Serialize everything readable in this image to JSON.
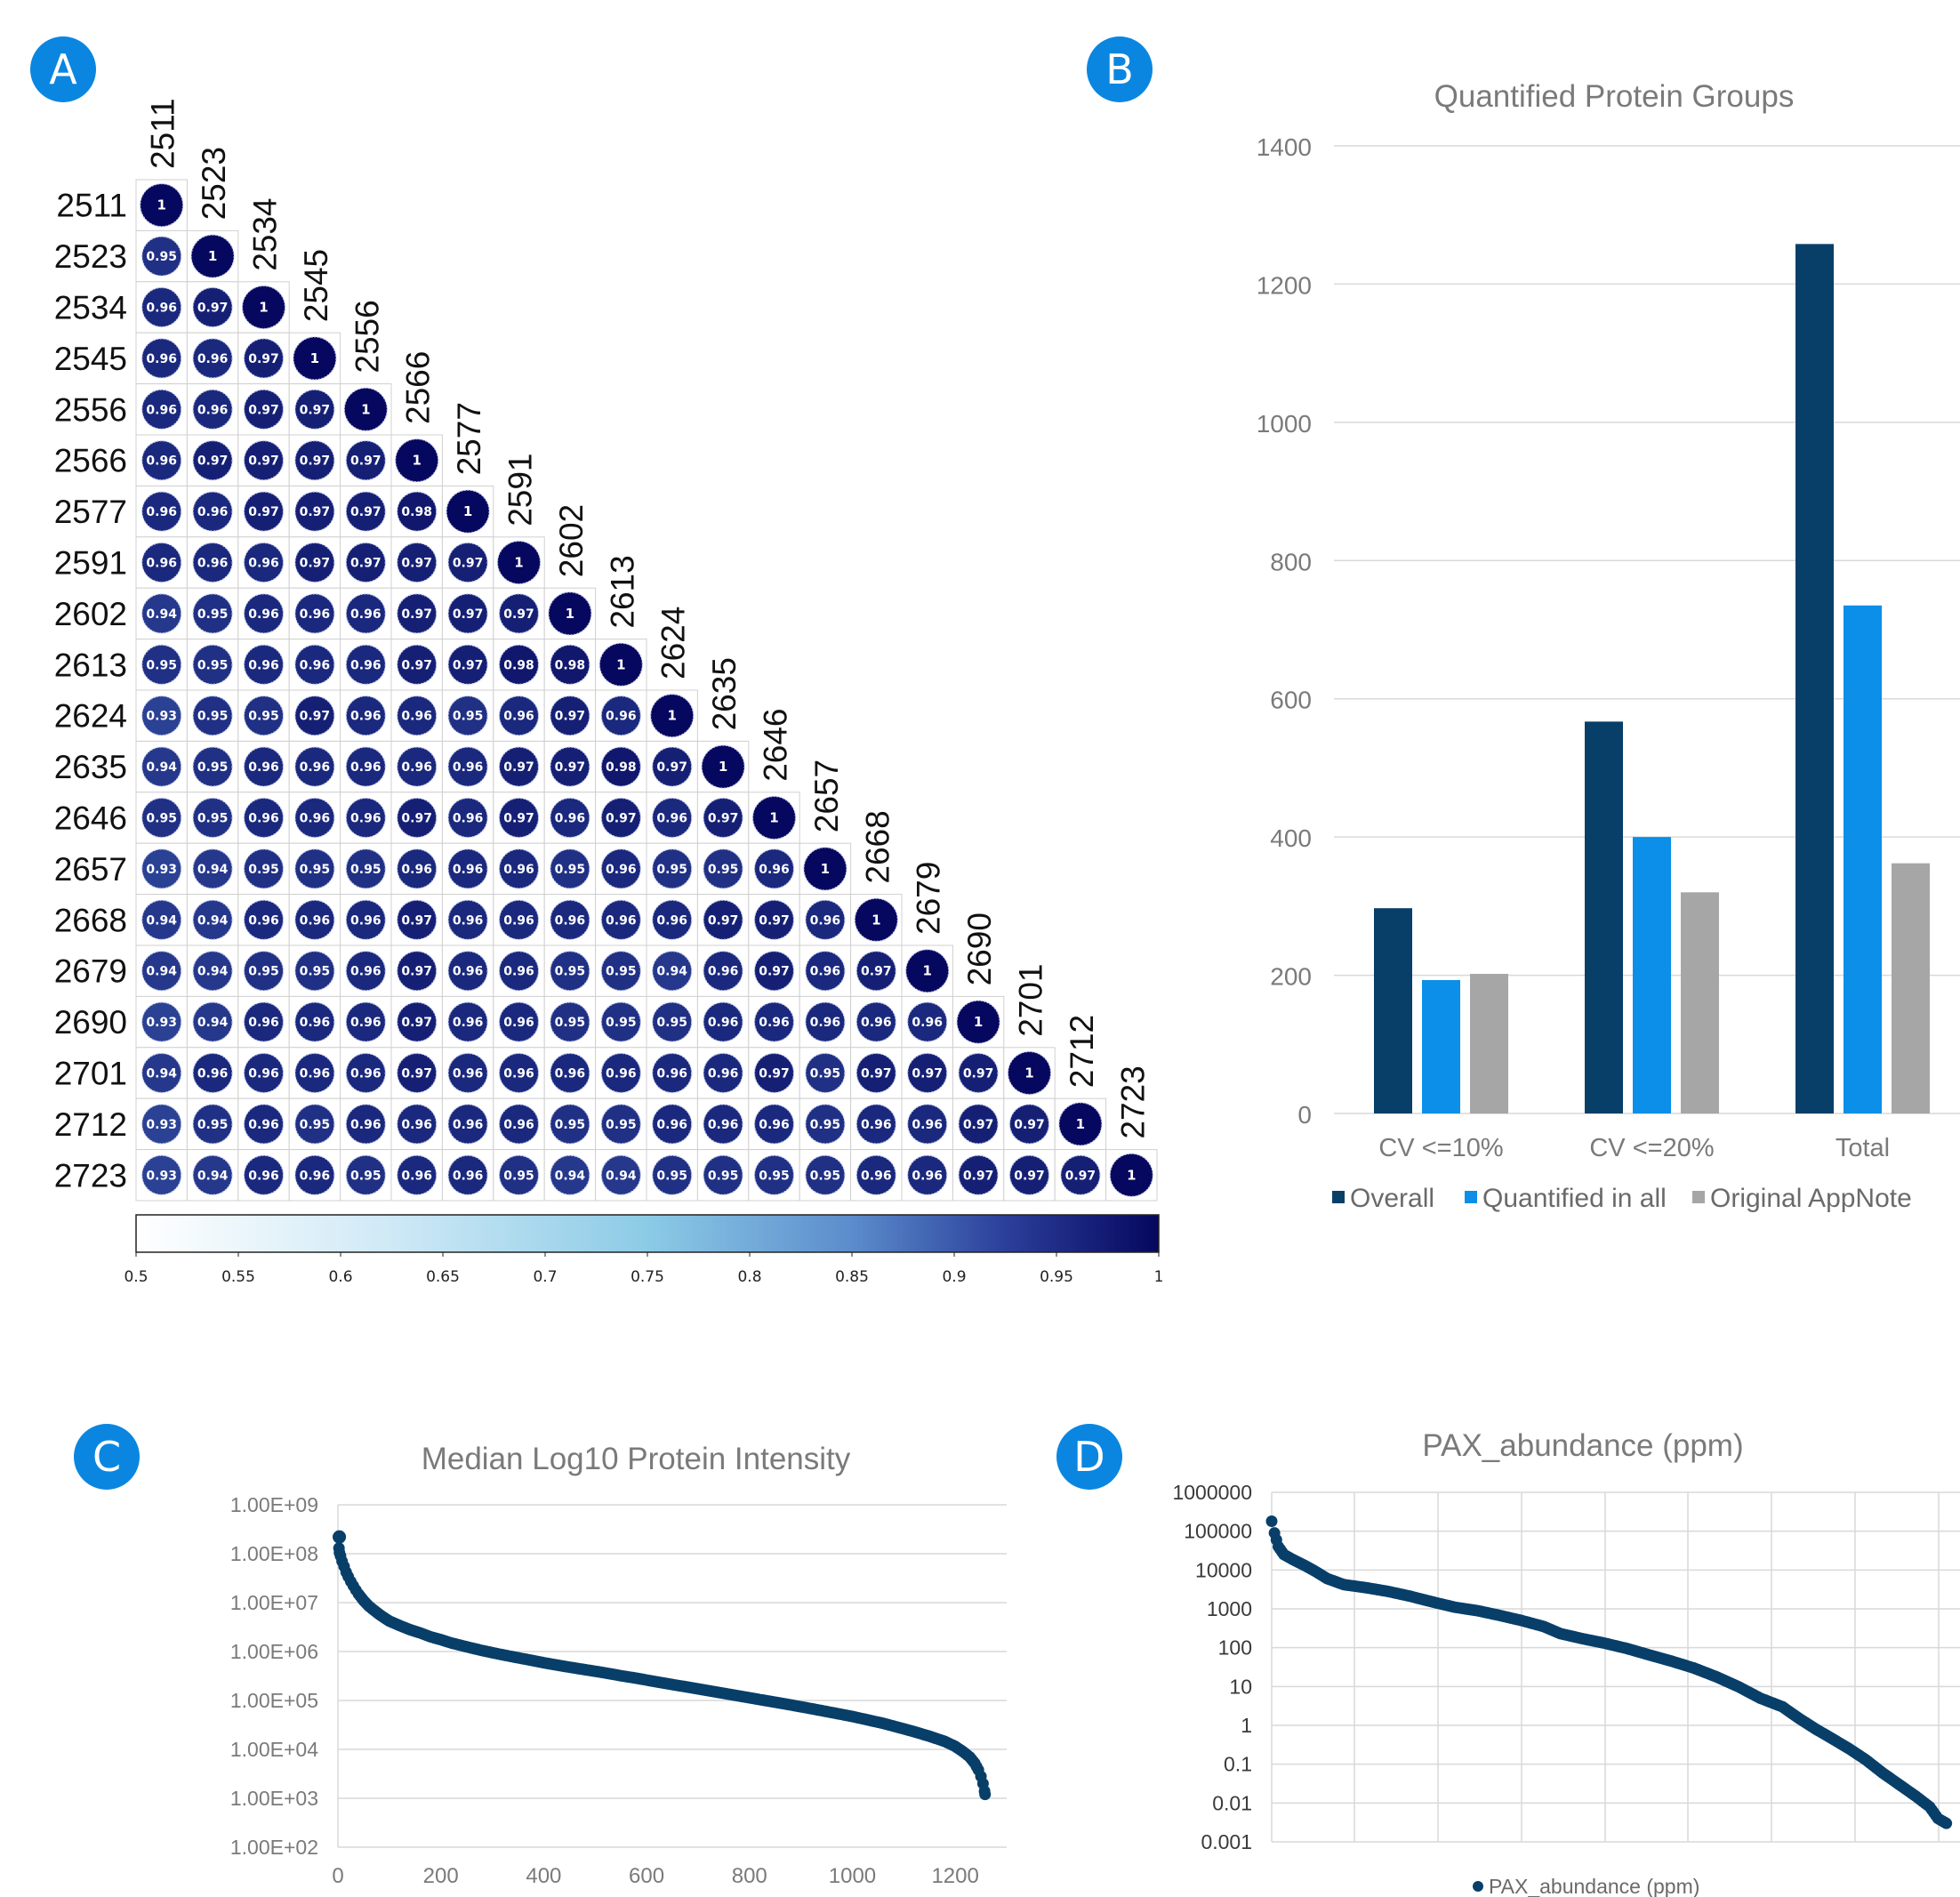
{
  "panels": {
    "A": {
      "badge": "A"
    },
    "B": {
      "badge": "B"
    },
    "C": {
      "badge": "C"
    },
    "D": {
      "badge": "D"
    }
  },
  "colors": {
    "badge": "#0a86e0",
    "overall": "#083f69",
    "quantified_in_all": "#0b8fe8",
    "original_appnote": "#a6a6a6",
    "scatter": "#083f69",
    "heat_low": "#ffffff",
    "heat_mid": "#5b8ccc",
    "heat_high": "#06075e",
    "grid": "#d9d9d9",
    "axis_text": "#7a7a7a"
  },
  "chart_data": [
    {
      "id": "A",
      "type": "heatmap",
      "samples": [
        "2511",
        "2523",
        "2534",
        "2545",
        "2556",
        "2566",
        "2577",
        "2591",
        "2602",
        "2613",
        "2624",
        "2635",
        "2646",
        "2657",
        "2668",
        "2679",
        "2690",
        "2701",
        "2712",
        "2723"
      ],
      "matrix": [
        [
          "1"
        ],
        [
          "0.95",
          "1"
        ],
        [
          "0.96",
          "0.97",
          "1"
        ],
        [
          "0.96",
          "0.96",
          "0.97",
          "1"
        ],
        [
          "0.96",
          "0.96",
          "0.97",
          "0.97",
          "1"
        ],
        [
          "0.96",
          "0.97",
          "0.97",
          "0.97",
          "0.97",
          "1"
        ],
        [
          "0.96",
          "0.96",
          "0.97",
          "0.97",
          "0.97",
          "0.98",
          "1"
        ],
        [
          "0.96",
          "0.96",
          "0.96",
          "0.97",
          "0.97",
          "0.97",
          "0.97",
          "1"
        ],
        [
          "0.94",
          "0.95",
          "0.96",
          "0.96",
          "0.96",
          "0.97",
          "0.97",
          "0.97",
          "1"
        ],
        [
          "0.95",
          "0.95",
          "0.96",
          "0.96",
          "0.96",
          "0.97",
          "0.97",
          "0.98",
          "0.98",
          "1"
        ],
        [
          "0.93",
          "0.95",
          "0.95",
          "0.97",
          "0.96",
          "0.96",
          "0.95",
          "0.96",
          "0.97",
          "0.96",
          "1"
        ],
        [
          "0.94",
          "0.95",
          "0.96",
          "0.96",
          "0.96",
          "0.96",
          "0.96",
          "0.97",
          "0.97",
          "0.98",
          "0.97",
          "1"
        ],
        [
          "0.95",
          "0.95",
          "0.96",
          "0.96",
          "0.96",
          "0.97",
          "0.96",
          "0.97",
          "0.96",
          "0.97",
          "0.96",
          "0.97",
          "1"
        ],
        [
          "0.93",
          "0.94",
          "0.95",
          "0.95",
          "0.95",
          "0.96",
          "0.96",
          "0.96",
          "0.95",
          "0.96",
          "0.95",
          "0.95",
          "0.96",
          "1"
        ],
        [
          "0.94",
          "0.94",
          "0.96",
          "0.96",
          "0.96",
          "0.97",
          "0.96",
          "0.96",
          "0.96",
          "0.96",
          "0.96",
          "0.97",
          "0.97",
          "0.96",
          "1"
        ],
        [
          "0.94",
          "0.94",
          "0.95",
          "0.95",
          "0.96",
          "0.97",
          "0.96",
          "0.96",
          "0.95",
          "0.95",
          "0.94",
          "0.96",
          "0.97",
          "0.96",
          "0.97",
          "1"
        ],
        [
          "0.93",
          "0.94",
          "0.96",
          "0.96",
          "0.96",
          "0.97",
          "0.96",
          "0.96",
          "0.95",
          "0.95",
          "0.95",
          "0.96",
          "0.96",
          "0.96",
          "0.96",
          "0.96",
          "1"
        ],
        [
          "0.94",
          "0.96",
          "0.96",
          "0.96",
          "0.96",
          "0.97",
          "0.96",
          "0.96",
          "0.96",
          "0.96",
          "0.96",
          "0.96",
          "0.97",
          "0.95",
          "0.97",
          "0.97",
          "0.97",
          "1"
        ],
        [
          "0.93",
          "0.95",
          "0.96",
          "0.95",
          "0.96",
          "0.96",
          "0.96",
          "0.96",
          "0.95",
          "0.95",
          "0.96",
          "0.96",
          "0.96",
          "0.95",
          "0.96",
          "0.96",
          "0.97",
          "0.97",
          "1"
        ],
        [
          "0.93",
          "0.94",
          "0.96",
          "0.96",
          "0.95",
          "0.96",
          "0.96",
          "0.95",
          "0.94",
          "0.94",
          "0.95",
          "0.95",
          "0.95",
          "0.95",
          "0.96",
          "0.96",
          "0.97",
          "0.97",
          "0.97",
          "1"
        ]
      ],
      "colorbar": {
        "ticks": [
          "0.5",
          "0.55",
          "0.6",
          "0.65",
          "0.7",
          "0.75",
          "0.8",
          "0.85",
          "0.9",
          "0.95",
          "1"
        ],
        "range": [
          0.5,
          1
        ]
      }
    },
    {
      "id": "B",
      "type": "bar",
      "title": "Quantified Protein Groups",
      "categories": [
        "CV <=10%",
        "CV <=20%",
        "Total"
      ],
      "series": [
        {
          "name": "Overall",
          "values": [
            297,
            567,
            1258
          ]
        },
        {
          "name": "Quantified in all",
          "values": [
            193,
            400,
            735
          ]
        },
        {
          "name": "Original AppNote",
          "values": [
            202,
            320,
            362
          ]
        }
      ],
      "yticks": [
        "0",
        "200",
        "400",
        "600",
        "800",
        "1000",
        "1200",
        "1400"
      ],
      "ylim": [
        0,
        1400
      ],
      "legend": "bottom",
      "grid": true
    },
    {
      "id": "C",
      "type": "scatter",
      "title": "Median Log10 Protein Intensity",
      "x_ticks": [
        "0",
        "200",
        "400",
        "600",
        "800",
        "1000",
        "1200"
      ],
      "xlim": [
        0,
        1300
      ],
      "y_ticks": [
        "1.00E+02",
        "1.00E+03",
        "1.00E+04",
        "1.00E+05",
        "1.00E+06",
        "1.00E+07",
        "1.00E+08",
        "1.00E+09"
      ],
      "ylim": [
        100,
        1000000000
      ],
      "y_scale": "log",
      "grid": true,
      "points": [
        [
          1,
          220000000
        ],
        [
          2,
          130000000
        ],
        [
          3,
          105000000
        ],
        [
          5,
          90000000
        ],
        [
          8,
          70000000
        ],
        [
          12,
          55000000
        ],
        [
          16,
          42000000
        ],
        [
          20,
          34000000
        ],
        [
          25,
          27000000
        ],
        [
          30,
          22000000
        ],
        [
          35,
          18000000
        ],
        [
          40,
          15000000
        ],
        [
          50,
          11000000
        ],
        [
          60,
          8500000
        ],
        [
          70,
          7000000
        ],
        [
          80,
          5800000
        ],
        [
          90,
          4900000
        ],
        [
          100,
          4200000
        ],
        [
          120,
          3400000
        ],
        [
          140,
          2800000
        ],
        [
          160,
          2400000
        ],
        [
          180,
          2000000
        ],
        [
          200,
          1750000
        ],
        [
          220,
          1500000
        ],
        [
          250,
          1250000
        ],
        [
          280,
          1050000
        ],
        [
          310,
          900000
        ],
        [
          340,
          780000
        ],
        [
          370,
          680000
        ],
        [
          400,
          590000
        ],
        [
          430,
          520000
        ],
        [
          460,
          460000
        ],
        [
          490,
          410000
        ],
        [
          520,
          365000
        ],
        [
          550,
          320000
        ],
        [
          580,
          285000
        ],
        [
          610,
          250000
        ],
        [
          640,
          220000
        ],
        [
          670,
          195000
        ],
        [
          700,
          172000
        ],
        [
          730,
          152000
        ],
        [
          760,
          134000
        ],
        [
          790,
          118000
        ],
        [
          820,
          104000
        ],
        [
          850,
          92000
        ],
        [
          880,
          81000
        ],
        [
          910,
          71000
        ],
        [
          940,
          62000
        ],
        [
          970,
          54000
        ],
        [
          1000,
          47000
        ],
        [
          1030,
          40000
        ],
        [
          1060,
          34000
        ],
        [
          1090,
          28000
        ],
        [
          1120,
          23000
        ],
        [
          1150,
          18500
        ],
        [
          1180,
          14500
        ],
        [
          1200,
          11500
        ],
        [
          1215,
          9000
        ],
        [
          1228,
          7000
        ],
        [
          1238,
          5200
        ],
        [
          1245,
          3800
        ],
        [
          1250,
          2800
        ],
        [
          1254,
          2000
        ],
        [
          1257,
          1400
        ],
        [
          1258,
          1200
        ]
      ]
    },
    {
      "id": "D",
      "type": "scatter",
      "title": "PAX_abundance (ppm)",
      "y_ticks": [
        "0.001",
        "0.01",
        "0.1",
        "1",
        "10",
        "100",
        "1000",
        "10000",
        "100000",
        "1000000"
      ],
      "ylim": [
        0.001,
        1000000
      ],
      "y_scale": "log",
      "grid": true,
      "legend": "bottom",
      "series_name": "PAX_abundance (ppm)",
      "points": [
        [
          0,
          180000
        ],
        [
          5,
          90000
        ],
        [
          12,
          40000
        ],
        [
          22,
          25000
        ],
        [
          40,
          18000
        ],
        [
          60,
          13000
        ],
        [
          80,
          9000
        ],
        [
          100,
          6000
        ],
        [
          130,
          4200
        ],
        [
          170,
          3500
        ],
        [
          210,
          2800
        ],
        [
          250,
          2100
        ],
        [
          290,
          1500
        ],
        [
          330,
          1100
        ],
        [
          370,
          900
        ],
        [
          410,
          680
        ],
        [
          450,
          500
        ],
        [
          490,
          350
        ],
        [
          520,
          230
        ],
        [
          560,
          170
        ],
        [
          600,
          130
        ],
        [
          640,
          95
        ],
        [
          680,
          65
        ],
        [
          720,
          45
        ],
        [
          760,
          30
        ],
        [
          800,
          18
        ],
        [
          840,
          10
        ],
        [
          880,
          5
        ],
        [
          920,
          3
        ],
        [
          950,
          1.5
        ],
        [
          980,
          0.8
        ],
        [
          1010,
          0.45
        ],
        [
          1040,
          0.25
        ],
        [
          1070,
          0.13
        ],
        [
          1100,
          0.06
        ],
        [
          1130,
          0.03
        ],
        [
          1160,
          0.015
        ],
        [
          1185,
          0.008
        ],
        [
          1200,
          0.004
        ],
        [
          1215,
          0.003
        ]
      ],
      "xlim": [
        0,
        1230
      ]
    }
  ]
}
